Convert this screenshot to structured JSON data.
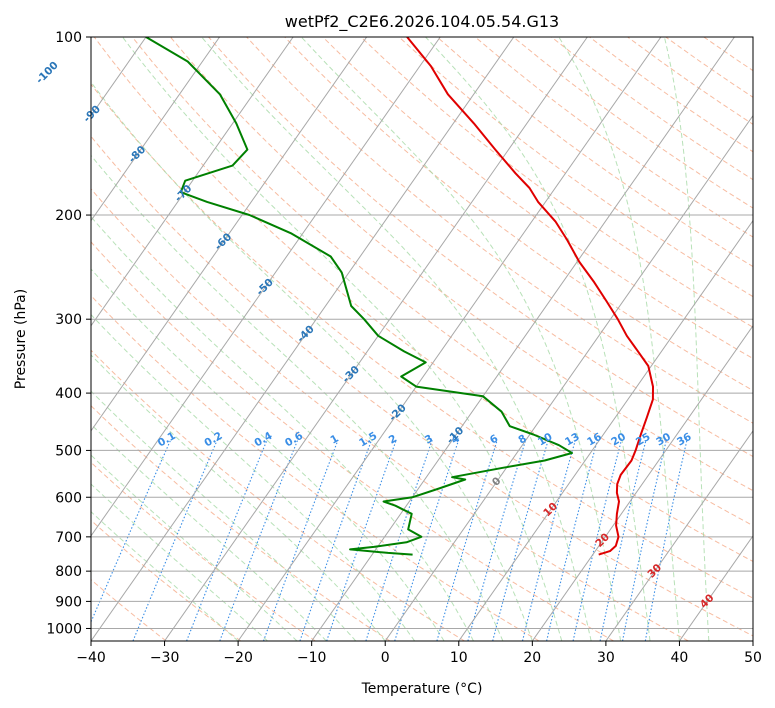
{
  "chart_data": {
    "type": "skew-t",
    "title": "wetPf2_C2E6.2026.104.05.54.G13",
    "xlabel": "Temperature (°C)",
    "ylabel": "Pressure (hPa)",
    "xlim": [
      -40,
      50
    ],
    "ylim": [
      1050,
      100
    ],
    "y_scale": "log",
    "grid": true,
    "x_ticks": [
      "−40",
      "−30",
      "−20",
      "−10",
      "0",
      "10",
      "20",
      "30",
      "40",
      "50"
    ],
    "y_ticks": [
      "100",
      "200",
      "300",
      "400",
      "500",
      "600",
      "700",
      "800",
      "900",
      "1000"
    ],
    "isotherm_labels": [
      "-100",
      "-90",
      "-80",
      "-70",
      "-60",
      "-50",
      "-40",
      "-30",
      "-20",
      "-10",
      "0",
      "10",
      "20",
      "30",
      "40"
    ],
    "mixing_ratio_labels": [
      "0.1",
      "0.2",
      "0.4",
      "0.6",
      "1",
      "1.5",
      "2",
      "3",
      "4",
      "6",
      "8",
      "10",
      "13",
      "16",
      "20",
      "25",
      "30",
      "36"
    ],
    "series": [
      {
        "name": "",
        "color": "#e00000",
        "points": [
          [
            750,
            20.8
          ],
          [
            740,
            22.0
          ],
          [
            725,
            22.3
          ],
          [
            700,
            21.8
          ],
          [
            670,
            20.4
          ],
          [
            640,
            19.4
          ],
          [
            610,
            18.5
          ],
          [
            590,
            17.4
          ],
          [
            570,
            16.6
          ],
          [
            550,
            16.2
          ],
          [
            520,
            16.3
          ],
          [
            500,
            15.9
          ],
          [
            470,
            15.1
          ],
          [
            440,
            14.3
          ],
          [
            410,
            13.4
          ],
          [
            390,
            12.2
          ],
          [
            360,
            9.6
          ],
          [
            340,
            6.8
          ],
          [
            320,
            3.8
          ],
          [
            300,
            1.0
          ],
          [
            280,
            -2.2
          ],
          [
            260,
            -5.7
          ],
          [
            240,
            -9.7
          ],
          [
            220,
            -13.5
          ],
          [
            205,
            -16.8
          ],
          [
            190,
            -21.0
          ],
          [
            180,
            -23.5
          ],
          [
            170,
            -26.8
          ],
          [
            155,
            -31.8
          ],
          [
            140,
            -37.2
          ],
          [
            125,
            -43.5
          ],
          [
            112,
            -48.5
          ],
          [
            100,
            -54.5
          ]
        ]
      },
      {
        "name": "",
        "color": "#008000",
        "points": [
          [
            750,
            -4.5
          ],
          [
            745,
            -8.0
          ],
          [
            735,
            -13.5
          ],
          [
            728,
            -10.5
          ],
          [
            715,
            -6.5
          ],
          [
            700,
            -5.0
          ],
          [
            680,
            -7.5
          ],
          [
            660,
            -8.0
          ],
          [
            640,
            -8.5
          ],
          [
            620,
            -11.5
          ],
          [
            610,
            -13.5
          ],
          [
            600,
            -10.0
          ],
          [
            580,
            -7.2
          ],
          [
            560,
            -4.5
          ],
          [
            555,
            -6.5
          ],
          [
            535,
            -0.5
          ],
          [
            520,
            4.5
          ],
          [
            505,
            7.5
          ],
          [
            490,
            5.0
          ],
          [
            470,
            0.5
          ],
          [
            455,
            -3.5
          ],
          [
            430,
            -6.0
          ],
          [
            405,
            -10.0
          ],
          [
            390,
            -20.0
          ],
          [
            375,
            -23.0
          ],
          [
            355,
            -21.0
          ],
          [
            340,
            -25.0
          ],
          [
            320,
            -30.0
          ],
          [
            300,
            -33.5
          ],
          [
            285,
            -36.5
          ],
          [
            265,
            -39.0
          ],
          [
            250,
            -41.0
          ],
          [
            235,
            -44.0
          ],
          [
            215,
            -51.5
          ],
          [
            200,
            -59.0
          ],
          [
            190,
            -66.0
          ],
          [
            183,
            -70.5
          ],
          [
            175,
            -71.0
          ],
          [
            165,
            -66.0
          ],
          [
            155,
            -65.5
          ],
          [
            140,
            -69.5
          ],
          [
            125,
            -74.5
          ],
          [
            110,
            -82.0
          ],
          [
            100,
            -90.0
          ]
        ]
      }
    ]
  }
}
